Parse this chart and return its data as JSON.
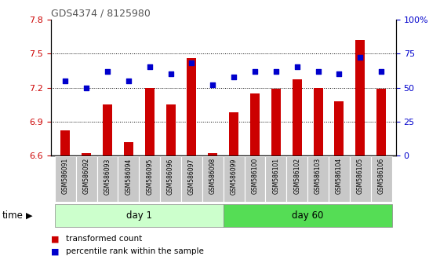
{
  "title": "GDS4374 / 8125980",
  "categories": [
    "GSM586091",
    "GSM586092",
    "GSM586093",
    "GSM586094",
    "GSM586095",
    "GSM586096",
    "GSM586097",
    "GSM586098",
    "GSM586099",
    "GSM586100",
    "GSM586101",
    "GSM586102",
    "GSM586103",
    "GSM586104",
    "GSM586105",
    "GSM586106"
  ],
  "bar_values": [
    6.82,
    6.62,
    7.05,
    6.72,
    7.2,
    7.05,
    7.46,
    6.62,
    6.98,
    7.15,
    7.19,
    7.27,
    7.2,
    7.08,
    7.62,
    7.19
  ],
  "scatter_values": [
    55,
    50,
    62,
    55,
    65,
    60,
    68,
    52,
    58,
    62,
    62,
    65,
    62,
    60,
    72,
    62
  ],
  "ylim_left": [
    6.6,
    7.8
  ],
  "ylim_right": [
    0,
    100
  ],
  "yticks_left": [
    6.6,
    6.9,
    7.2,
    7.5,
    7.8
  ],
  "yticks_right": [
    0,
    25,
    50,
    75,
    100
  ],
  "bar_color": "#cc0000",
  "scatter_color": "#0000cc",
  "day1_count": 8,
  "day2_count": 8,
  "day1_label": "day 1",
  "day60_label": "day 60",
  "time_label": "time",
  "legend1": "transformed count",
  "legend2": "percentile rank within the sample",
  "group_bg_green_light": "#ccffcc",
  "group_bg_green": "#55dd55",
  "tick_color_left": "#cc0000",
  "tick_color_right": "#0000cc",
  "title_color": "#555555",
  "bar_baseline": 6.6,
  "grid_lines": [
    6.9,
    7.2,
    7.5
  ],
  "xticklabel_bg": "#c8c8c8",
  "xticklabel_border": "#aaaaaa"
}
